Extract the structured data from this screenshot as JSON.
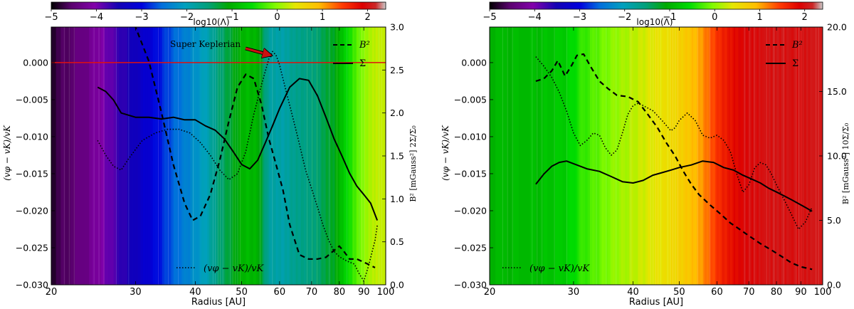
{
  "colorbar": {
    "ticks": [
      -5,
      -4,
      -3,
      -2,
      -1,
      0,
      1,
      2
    ],
    "tick_labels": [
      "−5",
      "−4",
      "−3",
      "−2",
      "−1",
      "0",
      "1",
      "2"
    ],
    "label": "log10(Λ)",
    "range": [
      -5,
      2.4
    ],
    "colormap": "nipy_spectral"
  },
  "chart_data": [
    {
      "type": "line",
      "xlabel": "Radius [AU]",
      "x_scale": "log",
      "xlim": [
        20,
        100
      ],
      "x_ticks": [
        20,
        30,
        40,
        50,
        60,
        70,
        80,
        90,
        100
      ],
      "ylabel_left": "(vφ − vK)/vK",
      "ylim_left": [
        -0.03,
        0.0048
      ],
      "y_ticks_left": [
        0.0,
        -0.005,
        -0.01,
        -0.015,
        -0.02,
        -0.025,
        -0.03
      ],
      "y_tick_labels_left": [
        "0.000",
        "−0.005",
        "−0.010",
        "−0.015",
        "−0.020",
        "−0.025",
        "−0.030"
      ],
      "ylabel_right": "B² [mGauss²]   2Σ/Σ₀",
      "ylim_right": [
        0,
        3.0
      ],
      "y_ticks_right": [
        0,
        0.5,
        1.0,
        1.5,
        2.0,
        2.5,
        3.0
      ],
      "y_tick_labels_right": [
        "0.0",
        "0.5",
        "1.0",
        "1.5",
        "2.0",
        "2.5",
        "3.0"
      ],
      "legend": [
        "B²",
        "Σ",
        "(vφ − vK)/vK"
      ],
      "zero_line": true,
      "annotation": "Super Keplerian",
      "log_lambda_bands": [
        [
          20,
          -4.8
        ],
        [
          24,
          -4.3
        ],
        [
          27,
          -3.8
        ],
        [
          30,
          -3.4
        ],
        [
          33,
          -3.0
        ],
        [
          36,
          -2.6
        ],
        [
          39,
          -2.3
        ],
        [
          42,
          -2.0
        ],
        [
          45,
          -1.5
        ],
        [
          48,
          -1.2
        ],
        [
          51,
          -0.9
        ],
        [
          54,
          -1.0
        ],
        [
          57,
          -1.8
        ],
        [
          61,
          -1.9
        ],
        [
          64,
          -1.7
        ],
        [
          68,
          -1.6
        ],
        [
          72,
          -1.5
        ],
        [
          75,
          -1.3
        ],
        [
          78,
          -1.2
        ],
        [
          82,
          -0.7
        ],
        [
          86,
          -0.3
        ],
        [
          90,
          0.0
        ],
        [
          94,
          0.2
        ],
        [
          97,
          0.25
        ]
      ],
      "series": [
        {
          "name": "B²",
          "style": "dashed",
          "axis": "right",
          "x": [
            29,
            30,
            32,
            34,
            36,
            38,
            39.5,
            41,
            43,
            45,
            47,
            49,
            51,
            53,
            55,
            57,
            59,
            61,
            63,
            66,
            69,
            72,
            75,
            78,
            80,
            82,
            84,
            87,
            91,
            95
          ],
          "y": [
            3.1,
            3.0,
            2.6,
            2.0,
            1.4,
            0.95,
            0.75,
            0.8,
            1.05,
            1.45,
            1.9,
            2.3,
            2.45,
            2.4,
            2.1,
            1.7,
            1.4,
            1.1,
            0.7,
            0.35,
            0.3,
            0.3,
            0.32,
            0.4,
            0.45,
            0.38,
            0.3,
            0.3,
            0.25,
            0.2
          ]
        },
        {
          "name": "Σ",
          "style": "solid",
          "axis": "right",
          "x": [
            25,
            26,
            27,
            28,
            30,
            32,
            34,
            36,
            38,
            40,
            42,
            44,
            46,
            48,
            50,
            52,
            54,
            56,
            58,
            60,
            63,
            66,
            69,
            72,
            75,
            78,
            81,
            84,
            87,
            90,
            93,
            96
          ],
          "y": [
            2.3,
            2.25,
            2.15,
            2.0,
            1.95,
            1.95,
            1.93,
            1.95,
            1.92,
            1.92,
            1.85,
            1.8,
            1.7,
            1.55,
            1.4,
            1.35,
            1.45,
            1.65,
            1.85,
            2.05,
            2.3,
            2.4,
            2.38,
            2.2,
            1.95,
            1.7,
            1.5,
            1.3,
            1.15,
            1.05,
            0.95,
            0.75
          ]
        },
        {
          "name": "(vφ − vK)/vK",
          "style": "dotted",
          "axis": "left",
          "x": [
            25,
            26,
            27,
            28,
            29,
            31,
            33,
            35,
            37,
            39,
            41,
            43,
            45,
            47,
            49,
            51,
            53,
            55,
            57,
            58,
            59,
            60,
            62,
            64,
            66,
            68,
            70,
            72,
            74,
            76,
            78,
            80,
            83,
            86,
            88,
            90,
            92,
            95,
            96
          ],
          "y": [
            -0.0105,
            -0.0125,
            -0.014,
            -0.0145,
            -0.013,
            -0.0105,
            -0.0095,
            -0.009,
            -0.009,
            -0.0095,
            -0.0108,
            -0.0125,
            -0.0145,
            -0.0158,
            -0.015,
            -0.012,
            -0.007,
            -0.003,
            0.0005,
            0.0015,
            0.001,
            -0.0003,
            -0.004,
            -0.0075,
            -0.011,
            -0.0145,
            -0.017,
            -0.0195,
            -0.022,
            -0.024,
            -0.0255,
            -0.0262,
            -0.0268,
            -0.0272,
            -0.0285,
            -0.0295,
            -0.0275,
            -0.024,
            -0.022
          ]
        }
      ]
    },
    {
      "type": "line",
      "xlabel": "Radius [AU]",
      "x_scale": "log",
      "xlim": [
        20,
        100
      ],
      "x_ticks": [
        20,
        30,
        40,
        50,
        60,
        70,
        80,
        90,
        100
      ],
      "ylabel_left": "(vφ − vK)/vK",
      "ylim_left": [
        -0.03,
        0.0048
      ],
      "y_ticks_left": [
        0.0,
        -0.005,
        -0.01,
        -0.015,
        -0.02,
        -0.025,
        -0.03
      ],
      "y_tick_labels_left": [
        "0.000",
        "−0.005",
        "−0.010",
        "−0.015",
        "−0.020",
        "−0.025",
        "−0.030"
      ],
      "ylabel_right": "B² [mGauss²] 10Σ/Σ₀",
      "ylim_right": [
        0,
        20.0
      ],
      "y_ticks_right": [
        0,
        5,
        10,
        15,
        20
      ],
      "y_tick_labels_right": [
        "0.0",
        "5.0",
        "10.0",
        "15.0",
        "20.0"
      ],
      "legend": [
        "B²",
        "Σ",
        "(vφ − vK)/vK"
      ],
      "zero_line": false,
      "log_lambda_bands": [
        [
          20,
          -0.95
        ],
        [
          25,
          -0.9
        ],
        [
          29,
          -0.7
        ],
        [
          31,
          -0.4
        ],
        [
          34,
          -0.15
        ],
        [
          37,
          0.05
        ],
        [
          40,
          0.2
        ],
        [
          44,
          0.4
        ],
        [
          48,
          0.55
        ],
        [
          52,
          0.8
        ],
        [
          55,
          1.0
        ],
        [
          58,
          1.3
        ],
        [
          61,
          1.6
        ],
        [
          65,
          1.8
        ],
        [
          69,
          1.95
        ],
        [
          74,
          2.0
        ],
        [
          80,
          2.05
        ],
        [
          88,
          2.0
        ],
        [
          95,
          2.05
        ]
      ],
      "series": [
        {
          "name": "B²",
          "style": "dashed",
          "axis": "right",
          "x": [
            25,
            26,
            27,
            27.8,
            28.8,
            29.8,
            30.5,
            31.5,
            32.5,
            34,
            35.5,
            37,
            39,
            41,
            43,
            45,
            47,
            49,
            51,
            53,
            55,
            58,
            61,
            64,
            67,
            70,
            74,
            78,
            82,
            86,
            90,
            95
          ],
          "y": [
            15.8,
            16.0,
            16.6,
            17.4,
            16.2,
            17.1,
            17.8,
            17.9,
            17.0,
            15.8,
            15.2,
            14.7,
            14.6,
            14.2,
            13.2,
            12.2,
            11.0,
            10.0,
            8.8,
            7.8,
            7.0,
            6.2,
            5.5,
            4.8,
            4.3,
            3.8,
            3.2,
            2.7,
            2.2,
            1.7,
            1.4,
            1.2
          ]
        },
        {
          "name": "Σ",
          "style": "solid",
          "axis": "right",
          "x": [
            25,
            26,
            27,
            28,
            29,
            30,
            32,
            34,
            36,
            38,
            40,
            42,
            44,
            46,
            48,
            50,
            53,
            56,
            59,
            62,
            65,
            68,
            71,
            74,
            77,
            80,
            83,
            86,
            89,
            92,
            95
          ],
          "y": [
            7.8,
            8.6,
            9.2,
            9.5,
            9.6,
            9.4,
            9.0,
            8.8,
            8.4,
            8.0,
            7.9,
            8.1,
            8.5,
            8.7,
            8.9,
            9.1,
            9.3,
            9.6,
            9.5,
            9.1,
            8.9,
            8.5,
            8.2,
            7.9,
            7.5,
            7.2,
            6.9,
            6.6,
            6.3,
            6.0,
            5.7
          ]
        },
        {
          "name": "(vφ − vK)/vK",
          "style": "dotted",
          "axis": "left",
          "x": [
            25,
            26,
            27,
            28,
            29,
            30,
            31,
            32,
            33,
            34,
            35,
            36,
            37,
            38,
            39,
            40,
            41,
            42,
            44,
            46,
            48,
            49,
            50,
            52,
            54,
            56,
            58,
            60,
            62,
            64,
            66,
            68,
            70,
            72,
            74,
            76,
            78,
            80,
            83,
            86,
            89,
            92,
            95
          ],
          "y": [
            0.0008,
            -0.0005,
            -0.002,
            -0.004,
            -0.0065,
            -0.0095,
            -0.0112,
            -0.0105,
            -0.0095,
            -0.0098,
            -0.0115,
            -0.0125,
            -0.0118,
            -0.0095,
            -0.007,
            -0.0058,
            -0.0055,
            -0.0058,
            -0.0065,
            -0.0078,
            -0.0092,
            -0.0088,
            -0.0078,
            -0.0068,
            -0.0078,
            -0.0098,
            -0.0102,
            -0.0098,
            -0.0105,
            -0.012,
            -0.015,
            -0.0175,
            -0.0165,
            -0.0142,
            -0.0135,
            -0.0138,
            -0.015,
            -0.0165,
            -0.0185,
            -0.0205,
            -0.0225,
            -0.0215,
            -0.0195
          ]
        }
      ]
    }
  ]
}
